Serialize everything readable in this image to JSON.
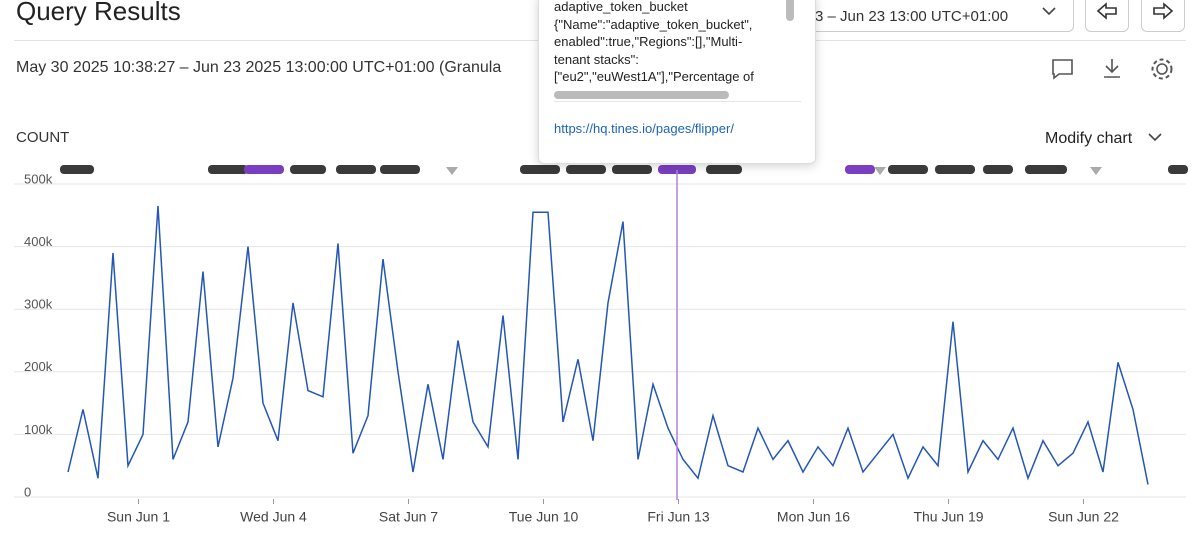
{
  "header": {
    "title": "Query Results",
    "range": "May 30 2025 10:38:27 – Jun 23 2025 13:00:00 UTC+01:00 (Granula",
    "range_picker": "3 – Jun 23 13:00 UTC+01:00",
    "modify": "Modify chart"
  },
  "tooltip": {
    "lines": [
      "adaptive_token_bucket",
      "{\"Name\":\"adaptive_token_bucket\",",
      "enabled\":true,\"Regions\":[],\"Multi-",
      "tenant stacks\":",
      "[\"eu2\",\"euWest1A\"],\"Percentage of"
    ],
    "link": "https://hq.tines.io/pages/flipper/"
  },
  "chart_data": {
    "type": "line",
    "y_label": "COUNT",
    "color": "#2357b5",
    "grid": true,
    "values": [
      40000,
      140000,
      30000,
      390000,
      50000,
      100000,
      465000,
      60000,
      120000,
      360000,
      80000,
      190000,
      400000,
      150000,
      90000,
      310000,
      170000,
      160000,
      405000,
      70000,
      130000,
      380000,
      200000,
      40000,
      180000,
      60000,
      250000,
      120000,
      80000,
      290000,
      60000,
      455000,
      455000,
      120000,
      220000,
      90000,
      310000,
      440000,
      60000,
      180000,
      110000,
      60000,
      30000,
      130000,
      50000,
      40000,
      110000,
      60000,
      90000,
      40000,
      80000,
      50000,
      110000,
      40000,
      70000,
      100000,
      30000,
      80000,
      50000,
      280000,
      40000,
      90000,
      60000,
      110000,
      30000,
      90000,
      50000,
      70000,
      120000,
      40000,
      215000,
      140000,
      20000
    ],
    "xlim": [
      0,
      74
    ],
    "xticks": [
      {
        "value": 4.7,
        "label": "Sun Jun 1"
      },
      {
        "value": 13.7,
        "label": "Wed Jun 4"
      },
      {
        "value": 22.7,
        "label": "Sat Jun 7"
      },
      {
        "value": 31.7,
        "label": "Tue Jun 10"
      },
      {
        "value": 40.7,
        "label": "Fri Jun 13"
      },
      {
        "value": 49.7,
        "label": "Mon Jun 16"
      },
      {
        "value": 58.7,
        "label": "Thu Jun 19"
      },
      {
        "value": 67.7,
        "label": "Sun Jun 22"
      }
    ],
    "ylim": [
      0,
      500000
    ],
    "yticks": [
      {
        "value": 0,
        "label": "0"
      },
      {
        "value": 100000,
        "label": "100k"
      },
      {
        "value": 200000,
        "label": "200k"
      },
      {
        "value": 300000,
        "label": "300k"
      },
      {
        "value": 400000,
        "label": "400k"
      },
      {
        "value": 500000,
        "label": "500k"
      }
    ]
  }
}
